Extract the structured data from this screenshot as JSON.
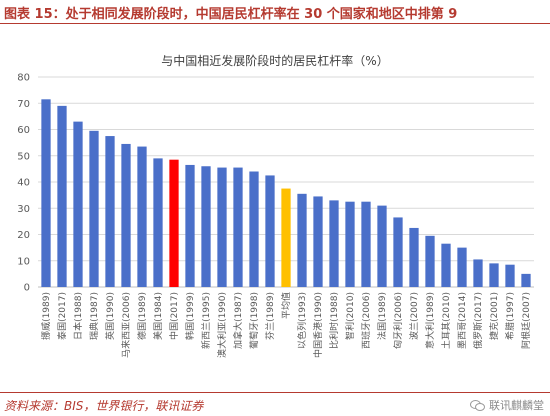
{
  "header": {
    "title": "图表 15：处于相同发展阶段时，中国居民杠杆率在 30 个国家和地区中排第 9"
  },
  "footer": {
    "source": "资料来源：BIS，世界银行，联讯证券",
    "watermark": "联讯麒麟堂",
    "watermark_icon": "wechat-icon"
  },
  "colors": {
    "accent": "#b53a30",
    "bar_default": "#4a6fc9",
    "bar_china": "#ff0000",
    "bar_average": "#ffc000",
    "grid": "#d9d9d9",
    "axis_text": "#595959"
  },
  "chart_data": {
    "type": "bar",
    "title": "与中国相近发展阶段时的居民杠杆率（%）",
    "xlabel": "",
    "ylabel": "",
    "ylim": [
      0,
      80
    ],
    "yticks": [
      0,
      10,
      20,
      30,
      40,
      50,
      60,
      70,
      80
    ],
    "grid": true,
    "categories": [
      "挪威(1989)",
      "泰国(2017)",
      "日本(1988)",
      "瑞典(1987)",
      "英国(1990)",
      "马来西亚(2006)",
      "德国(1989)",
      "美国(1984)",
      "中国(2017)",
      "韩国(1999)",
      "新西兰(1995)",
      "澳大利亚(1990)",
      "加拿大(1987)",
      "葡萄牙(1998)",
      "芬兰(1989)",
      "平均值",
      "以色列(1993)",
      "中国香港(1990)",
      "比利时(1988)",
      "智利(2010)",
      "西班牙(2006)",
      "法国(1989)",
      "匈牙利(2006)",
      "波兰(2007)",
      "意大利(1989)",
      "土耳其(2010)",
      "墨西哥(2014)",
      "俄罗斯(2017)",
      "捷克(2001)",
      "希腊(1997)",
      "阿根廷(2007)"
    ],
    "values": [
      71.5,
      69,
      63,
      59.5,
      57.5,
      54.5,
      53.5,
      49,
      48.5,
      46.5,
      46,
      45.5,
      45.5,
      44,
      42.5,
      37.5,
      35.5,
      34.5,
      33,
      32.5,
      32.5,
      31,
      26.5,
      22.5,
      19.5,
      16.5,
      15,
      10.5,
      9,
      8.5,
      5
    ],
    "highlight": {
      "中国(2017)": "china",
      "平均值": "average"
    }
  }
}
